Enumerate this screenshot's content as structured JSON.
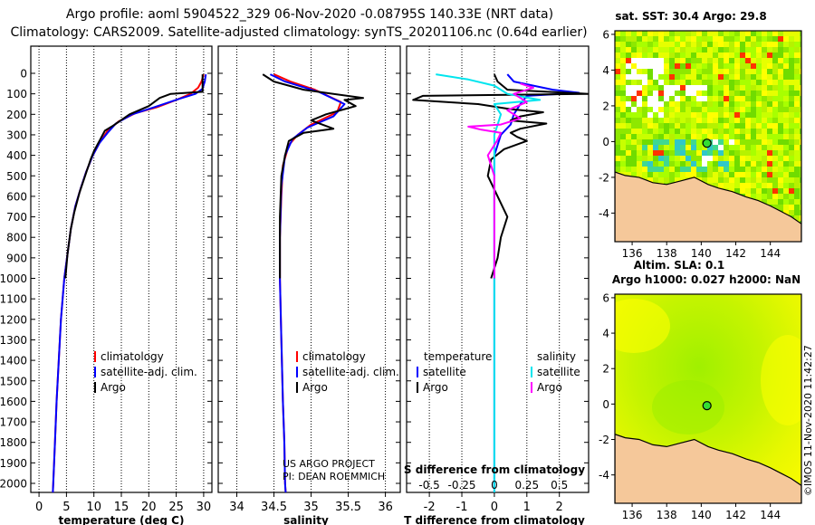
{
  "title": {
    "line1": "Argo profile: aoml 5904522_329 06-Nov-2020 -0.08795S 140.33E (NRT data)",
    "line2": "Climatology: CARS2009. Satellite-adjusted climatology: synTS_20201106.nc (0.64d earlier)"
  },
  "colors": {
    "climatology": "#ff0000",
    "satellite": "#0000ff",
    "argo": "#000000",
    "sal_satellite": "#00e5ee",
    "sal_argo": "#ff00ff",
    "land": "#f5c89a",
    "sea_green": "#a8ff00",
    "sea_yellow": "#ffff00"
  },
  "chart_data": [
    {
      "type": "line",
      "id": "temperature_profile",
      "xlabel": "temperature (deg C)",
      "xlim": [
        -1.5,
        31.5
      ],
      "ylim": [
        0,
        2060
      ],
      "xticks": [
        0,
        5,
        10,
        15,
        20,
        25,
        30
      ],
      "yticks": [
        0,
        100,
        200,
        300,
        400,
        500,
        600,
        700,
        800,
        900,
        1000,
        1100,
        1200,
        1300,
        1400,
        1500,
        1600,
        1700,
        1800,
        1900,
        2000
      ],
      "legend": [
        "climatology",
        "satellite-adj. clim.",
        "Argo"
      ],
      "series": [
        {
          "name": "climatology",
          "color_key": "climatology",
          "points": [
            [
              30,
              5
            ],
            [
              29.6,
              40
            ],
            [
              29.0,
              70
            ],
            [
              27.6,
              100
            ],
            [
              25,
              130
            ],
            [
              21.5,
              165
            ],
            [
              17.5,
              195
            ],
            [
              14.5,
              235
            ],
            [
              12.5,
              280
            ],
            [
              11,
              340
            ],
            [
              9.8,
              400
            ],
            [
              8.6,
              480
            ],
            [
              7.6,
              560
            ],
            [
              6.6,
              650
            ],
            [
              5.8,
              760
            ],
            [
              5.2,
              880
            ],
            [
              4.6,
              1000
            ],
            [
              4.0,
              1200
            ],
            [
              3.6,
              1400
            ],
            [
              3.2,
              1600
            ],
            [
              2.9,
              1800
            ],
            [
              2.6,
              2000
            ],
            [
              2.5,
              2060
            ]
          ]
        },
        {
          "name": "satellite-adj. clim.",
          "color_key": "satellite",
          "points": [
            [
              30.4,
              5
            ],
            [
              30.2,
              40
            ],
            [
              29.8,
              75
            ],
            [
              28.5,
              100
            ],
            [
              25.5,
              125
            ],
            [
              21.0,
              165
            ],
            [
              17.0,
              200
            ],
            [
              14.0,
              245
            ],
            [
              12.5,
              290
            ],
            [
              11,
              340
            ],
            [
              9.8,
              400
            ],
            [
              8.6,
              480
            ],
            [
              7.6,
              560
            ],
            [
              6.6,
              650
            ],
            [
              5.8,
              760
            ],
            [
              5.2,
              880
            ],
            [
              4.6,
              1000
            ],
            [
              4.0,
              1200
            ],
            [
              3.6,
              1400
            ],
            [
              3.2,
              1600
            ],
            [
              2.9,
              1800
            ],
            [
              2.6,
              2000
            ],
            [
              2.5,
              2060
            ]
          ]
        },
        {
          "name": "Argo",
          "color_key": "argo",
          "points": [
            [
              29.8,
              5
            ],
            [
              29.8,
              50
            ],
            [
              29.8,
              90
            ],
            [
              24,
              100
            ],
            [
              22,
              120
            ],
            [
              20,
              160
            ],
            [
              16.5,
              200
            ],
            [
              13.5,
              255
            ],
            [
              12,
              280
            ],
            [
              11.0,
              330
            ],
            [
              10.0,
              380
            ],
            [
              9.4,
              420
            ],
            [
              8.4,
              500
            ],
            [
              7.4,
              580
            ],
            [
              6.4,
              680
            ],
            [
              5.8,
              760
            ],
            [
              5.2,
              880
            ],
            [
              4.8,
              1000
            ]
          ]
        }
      ]
    },
    {
      "type": "line",
      "id": "salinity_profile",
      "xlabel": "salinity",
      "xlim": [
        33.75,
        36.2
      ],
      "ylim": [
        0,
        2060
      ],
      "xticks": [
        34,
        34.5,
        35,
        35.5,
        36
      ],
      "xticklabels": [
        "34",
        "34.5",
        "35",
        "35.5",
        "36"
      ],
      "legend": [
        "climatology",
        "satellite-adj. clim.",
        "Argo"
      ],
      "credit_line1": "US ARGO PROJECT",
      "credit_line2": "PI: DEAN ROEMMICH",
      "series": [
        {
          "name": "climatology",
          "color_key": "climatology",
          "points": [
            [
              34.5,
              5
            ],
            [
              34.72,
              40
            ],
            [
              35.05,
              80
            ],
            [
              35.4,
              140
            ],
            [
              35.35,
              190
            ],
            [
              35.0,
              250
            ],
            [
              34.82,
              300
            ],
            [
              34.7,
              350
            ],
            [
              34.62,
              450
            ],
            [
              34.6,
              600
            ],
            [
              34.58,
              800
            ],
            [
              34.58,
              1000
            ],
            [
              34.6,
              1300
            ],
            [
              34.62,
              1600
            ],
            [
              34.64,
              1800
            ],
            [
              34.65,
              2000
            ],
            [
              34.66,
              2060
            ]
          ]
        },
        {
          "name": "satellite-adj. clim.",
          "color_key": "satellite",
          "points": [
            [
              34.45,
              5
            ],
            [
              34.65,
              40
            ],
            [
              35.1,
              90
            ],
            [
              35.45,
              150
            ],
            [
              35.3,
              210
            ],
            [
              34.95,
              265
            ],
            [
              34.75,
              320
            ],
            [
              34.65,
              400
            ],
            [
              34.6,
              550
            ],
            [
              34.58,
              800
            ],
            [
              34.58,
              1000
            ],
            [
              34.6,
              1300
            ],
            [
              34.62,
              1600
            ],
            [
              34.64,
              1800
            ],
            [
              34.65,
              2000
            ],
            [
              34.66,
              2060
            ]
          ]
        },
        {
          "name": "Argo",
          "color_key": "argo",
          "points": [
            [
              34.35,
              5
            ],
            [
              34.5,
              40
            ],
            [
              34.9,
              80
            ],
            [
              35.3,
              100
            ],
            [
              35.7,
              120
            ],
            [
              35.45,
              130
            ],
            [
              35.6,
              160
            ],
            [
              35.2,
              200
            ],
            [
              35.0,
              230
            ],
            [
              35.3,
              270
            ],
            [
              34.9,
              290
            ],
            [
              34.7,
              330
            ],
            [
              34.65,
              400
            ],
            [
              34.6,
              500
            ],
            [
              34.58,
              700
            ],
            [
              34.58,
              1000
            ]
          ]
        }
      ]
    },
    {
      "type": "line",
      "id": "difference_profile",
      "xlabel": "T difference from climatology",
      "xlabel2": "S difference from climatology",
      "xlim": [
        -2.7,
        2.9
      ],
      "ylim": [
        0,
        2060
      ],
      "xticks": [
        -2,
        -1,
        0,
        1,
        2
      ],
      "s_xticks": [
        -0.5,
        -0.25,
        0,
        0.25,
        0.5
      ],
      "s_xticklabels": [
        "-0.5",
        "-0.25",
        "0",
        "0.25",
        "0.5"
      ],
      "s_scale": 4,
      "legend_heading_t": "temperature",
      "legend_heading_s": "salinity",
      "legend_t": [
        "satellite",
        "Argo"
      ],
      "legend_s": [
        "satellite",
        "Argo"
      ],
      "series": [
        {
          "name": "T satellite",
          "color_key": "satellite",
          "points": [
            [
              0.4,
              5
            ],
            [
              0.6,
              40
            ],
            [
              1.8,
              80
            ],
            [
              2.6,
              95
            ],
            [
              1.0,
              110
            ],
            [
              0.8,
              150
            ],
            [
              0.6,
              200
            ],
            [
              0.5,
              250
            ],
            [
              0.2,
              300
            ],
            [
              0,
              400
            ],
            [
              0,
              600
            ],
            [
              0,
              800
            ],
            [
              0,
              1000
            ],
            [
              0,
              1400
            ],
            [
              0,
              1800
            ],
            [
              0,
              2060
            ]
          ]
        },
        {
          "name": "T Argo",
          "color_key": "argo",
          "points": [
            [
              0,
              5
            ],
            [
              0.1,
              40
            ],
            [
              0.4,
              80
            ],
            [
              2.9,
              100
            ],
            [
              -2.2,
              110
            ],
            [
              -2.5,
              130
            ],
            [
              -0.5,
              150
            ],
            [
              0.5,
              175
            ],
            [
              1.5,
              190
            ],
            [
              0.8,
              210
            ],
            [
              0.5,
              230
            ],
            [
              1.6,
              245
            ],
            [
              0.8,
              270
            ],
            [
              0.5,
              290
            ],
            [
              0.7,
              310
            ],
            [
              1.0,
              330
            ],
            [
              0.3,
              370
            ],
            [
              -0.1,
              420
            ],
            [
              -0.2,
              500
            ],
            [
              0.1,
              600
            ],
            [
              0.4,
              700
            ],
            [
              0.2,
              800
            ],
            [
              0.1,
              900
            ],
            [
              -0.1,
              1000
            ]
          ]
        },
        {
          "name": "S satellite",
          "color_key": "sal_satellite",
          "points": [
            [
              -0.45,
              5
            ],
            [
              -0.2,
              30
            ],
            [
              0,
              60
            ],
            [
              0.1,
              100
            ],
            [
              0.35,
              130
            ],
            [
              0,
              150
            ],
            [
              0.05,
              200
            ],
            [
              0.02,
              260
            ],
            [
              0,
              300
            ],
            [
              0,
              500
            ],
            [
              0,
              800
            ],
            [
              0,
              1200
            ],
            [
              0,
              1600
            ],
            [
              0,
              2060
            ]
          ]
        },
        {
          "name": "S Argo",
          "color_key": "sal_argo",
          "points": [
            [
              0.2,
              50
            ],
            [
              0.3,
              70
            ],
            [
              0.15,
              100
            ],
            [
              0.25,
              140
            ],
            [
              0.1,
              180
            ],
            [
              0.2,
              220
            ],
            [
              0.05,
              250
            ],
            [
              -0.2,
              260
            ],
            [
              -0.1,
              275
            ],
            [
              0.05,
              290
            ],
            [
              0.02,
              330
            ],
            [
              -0.05,
              400
            ],
            [
              0,
              500
            ],
            [
              0,
              700
            ],
            [
              0,
              1000
            ]
          ]
        }
      ]
    },
    {
      "type": "heatmap",
      "id": "sst_map",
      "title": "sat. SST: 30.4 Argo: 29.8",
      "xlim": [
        135.0,
        145.8
      ],
      "ylim": [
        -5.6,
        6.2
      ],
      "xticks": [
        136,
        138,
        140,
        142,
        144
      ],
      "yticks": [
        -4,
        -2,
        0,
        2,
        4,
        6
      ],
      "float_lon": 140.33,
      "float_lat": -0.088
    },
    {
      "type": "heatmap",
      "id": "sla_map",
      "title": "Altim. SLA: 0.1",
      "subtitle": "Argo h1000: 0.027 h2000: NaN",
      "xlim": [
        135.0,
        145.8
      ],
      "ylim": [
        -5.6,
        6.2
      ],
      "xticks": [
        136,
        138,
        140,
        142,
        144
      ],
      "yticks": [
        -4,
        -2,
        0,
        2,
        4,
        6
      ],
      "float_lon": 140.33,
      "float_lat": -0.088
    }
  ],
  "watermark": "©IMOS 11-Nov-2020 11:42:27"
}
